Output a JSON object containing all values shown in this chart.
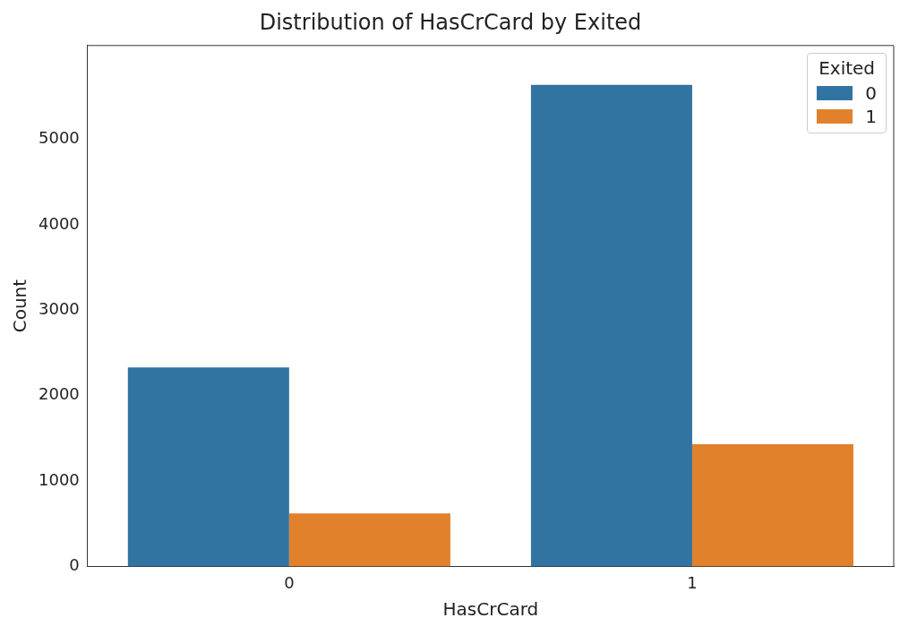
{
  "chart_data": {
    "type": "bar",
    "title": "Distribution of HasCrCard by Exited",
    "xlabel": "HasCrCard",
    "ylabel": "Count",
    "legend_title": "Exited",
    "categories": [
      "0",
      "1"
    ],
    "series": [
      {
        "name": "0",
        "color": "#3274a1",
        "values": [
          2330,
          5640
        ]
      },
      {
        "name": "1",
        "color": "#e1812c",
        "values": [
          620,
          1430
        ]
      }
    ],
    "ylim": [
      0,
      6100
    ],
    "yticks": [
      0,
      1000,
      2000,
      3000,
      4000,
      5000
    ],
    "grid": false,
    "legend": "top right"
  }
}
